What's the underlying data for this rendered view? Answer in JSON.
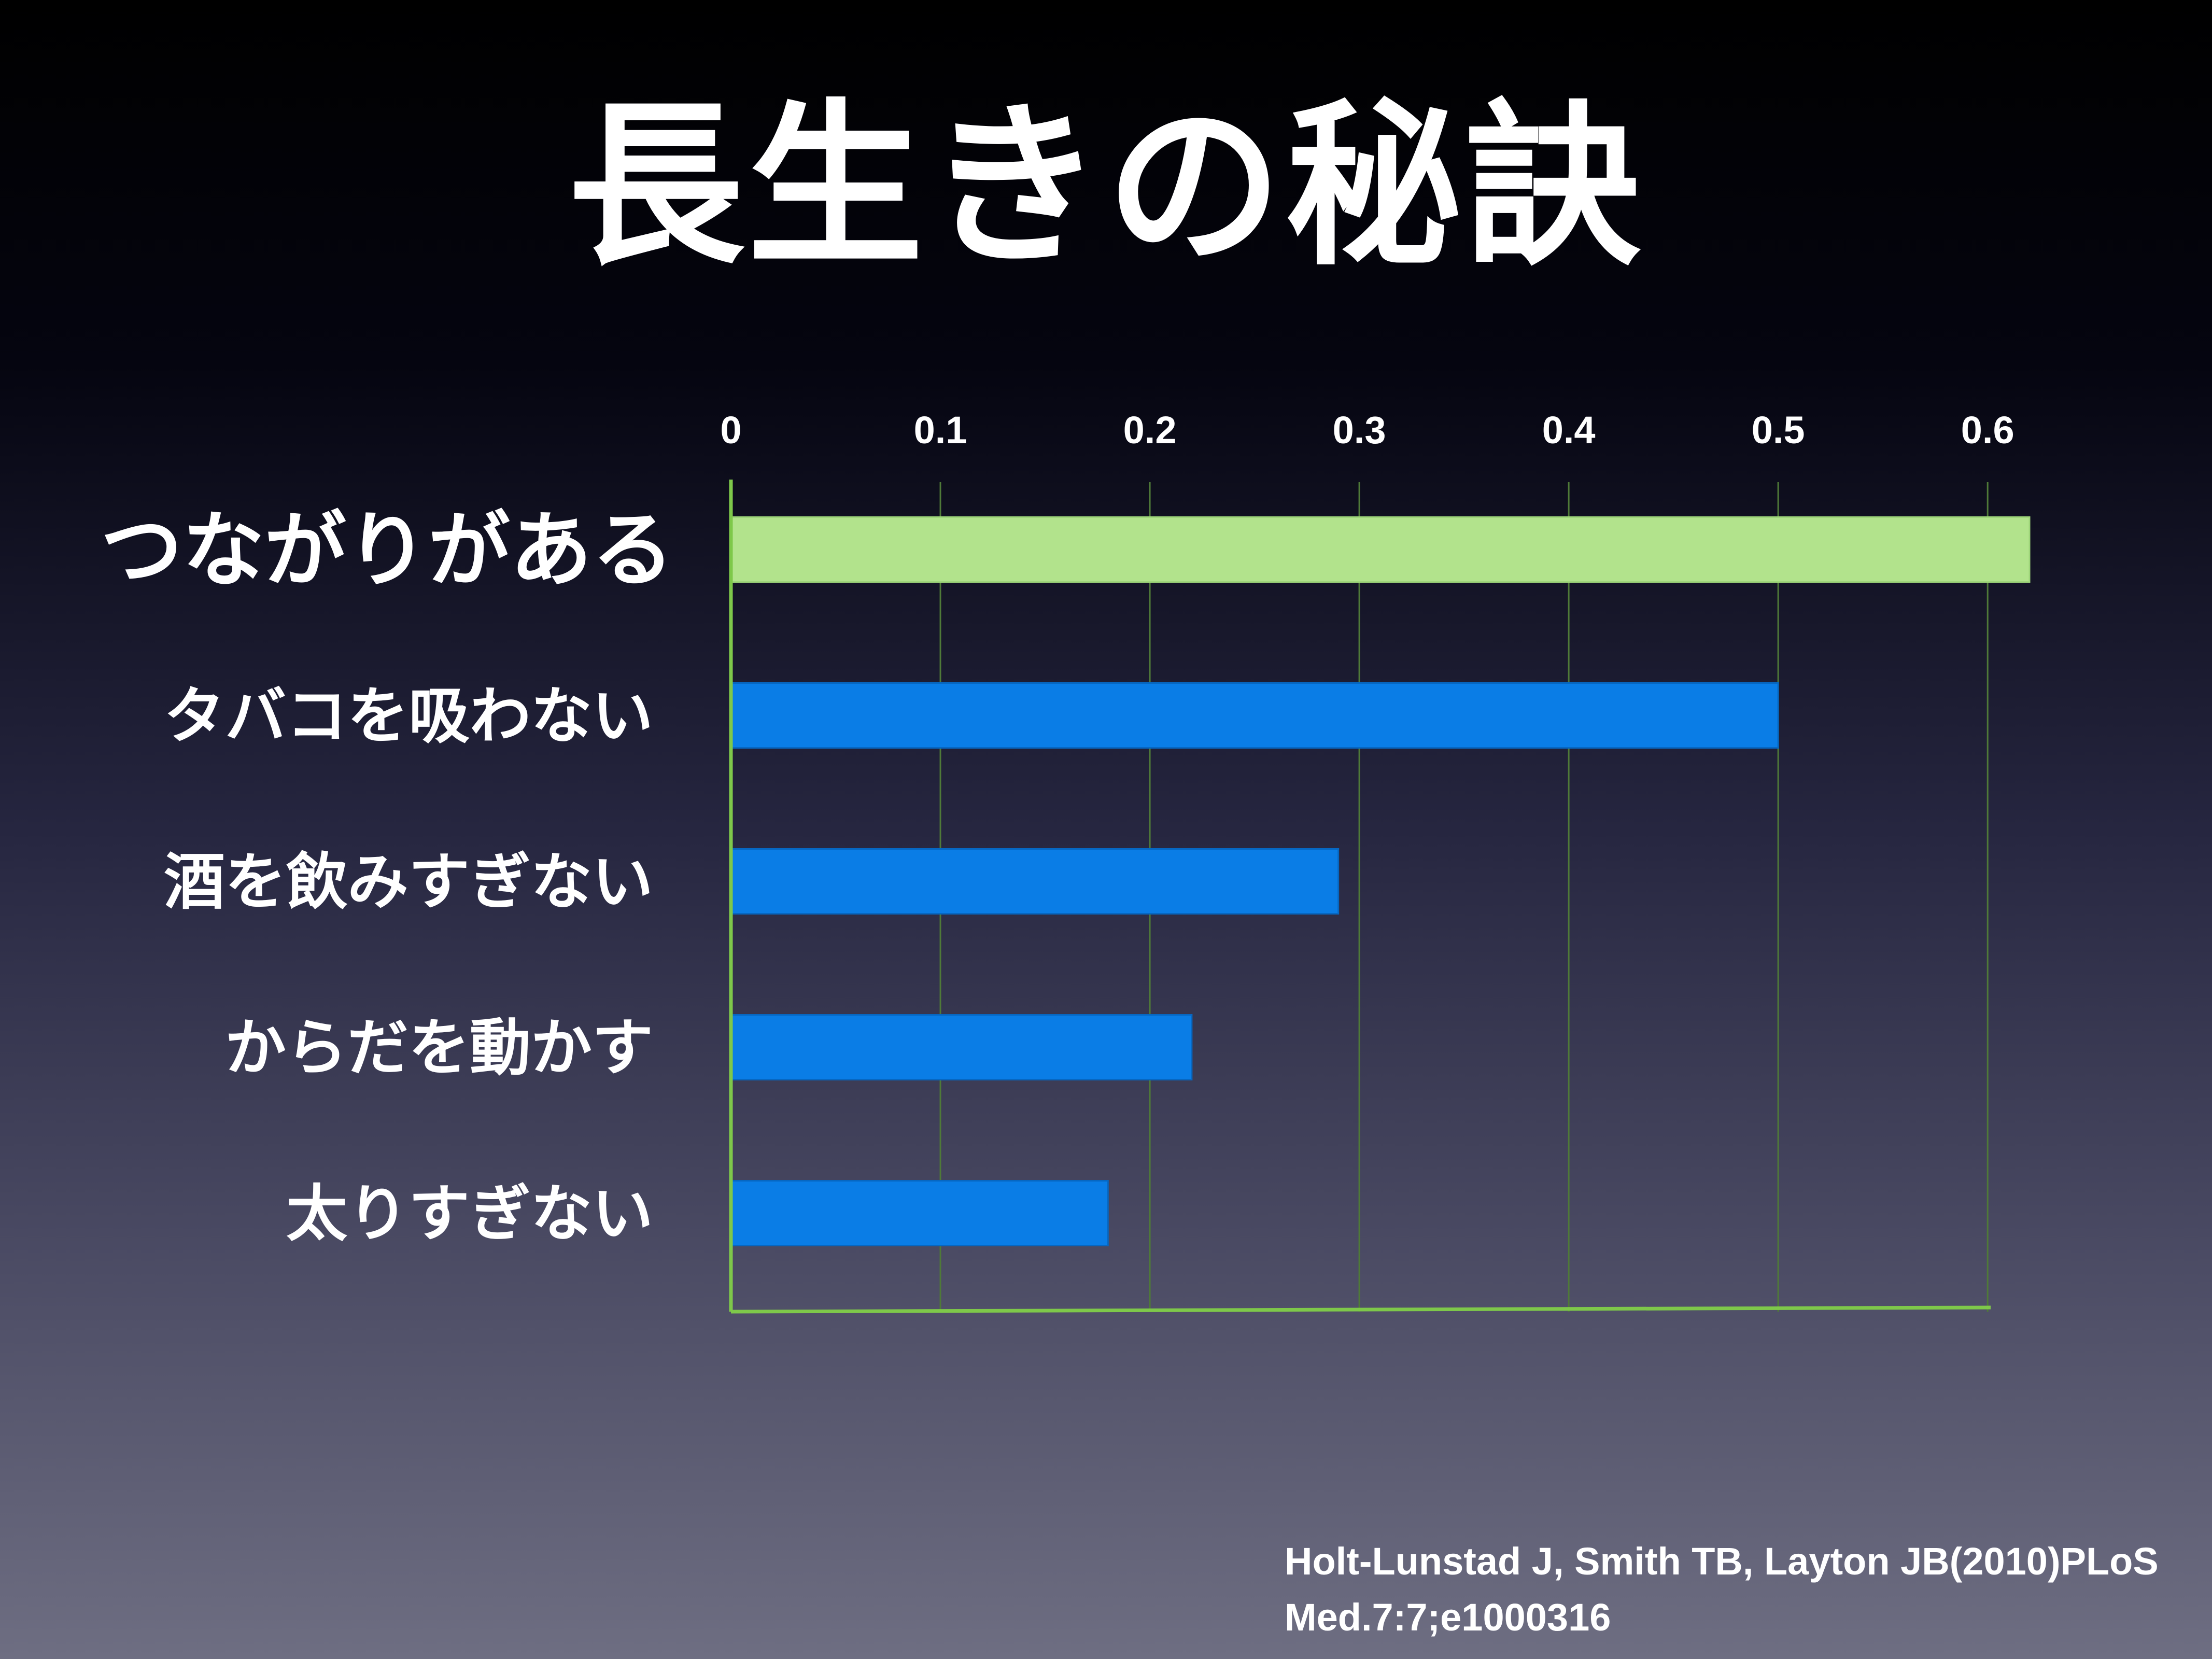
{
  "slide": {
    "title": "長生きの秘訣",
    "citation_line1": "Holt-Lunstad J, Smith TB, Layton JB(2010)PLoS",
    "citation_line2": "Med.7:7;e1000316"
  },
  "colors": {
    "highlight": "#b2e38c",
    "bar": "#0a7de6",
    "axis": "#7ec84a",
    "grid": "#4f7a38"
  },
  "chart_data": {
    "type": "bar",
    "orientation": "horizontal",
    "title": "",
    "xlabel": "",
    "ylabel": "",
    "x_ticks": [
      "0",
      "0.1",
      "0.2",
      "0.3",
      "0.4",
      "0.5",
      "0.6"
    ],
    "xlim": [
      0,
      0.62
    ],
    "grid": true,
    "categories": [
      "つながりがある",
      "タバコを吸わない",
      "酒を飲みすぎない",
      "からだを動かす",
      "太りすぎない"
    ],
    "values": [
      0.62,
      0.5,
      0.29,
      0.22,
      0.18
    ],
    "highlighted_index": 0
  }
}
